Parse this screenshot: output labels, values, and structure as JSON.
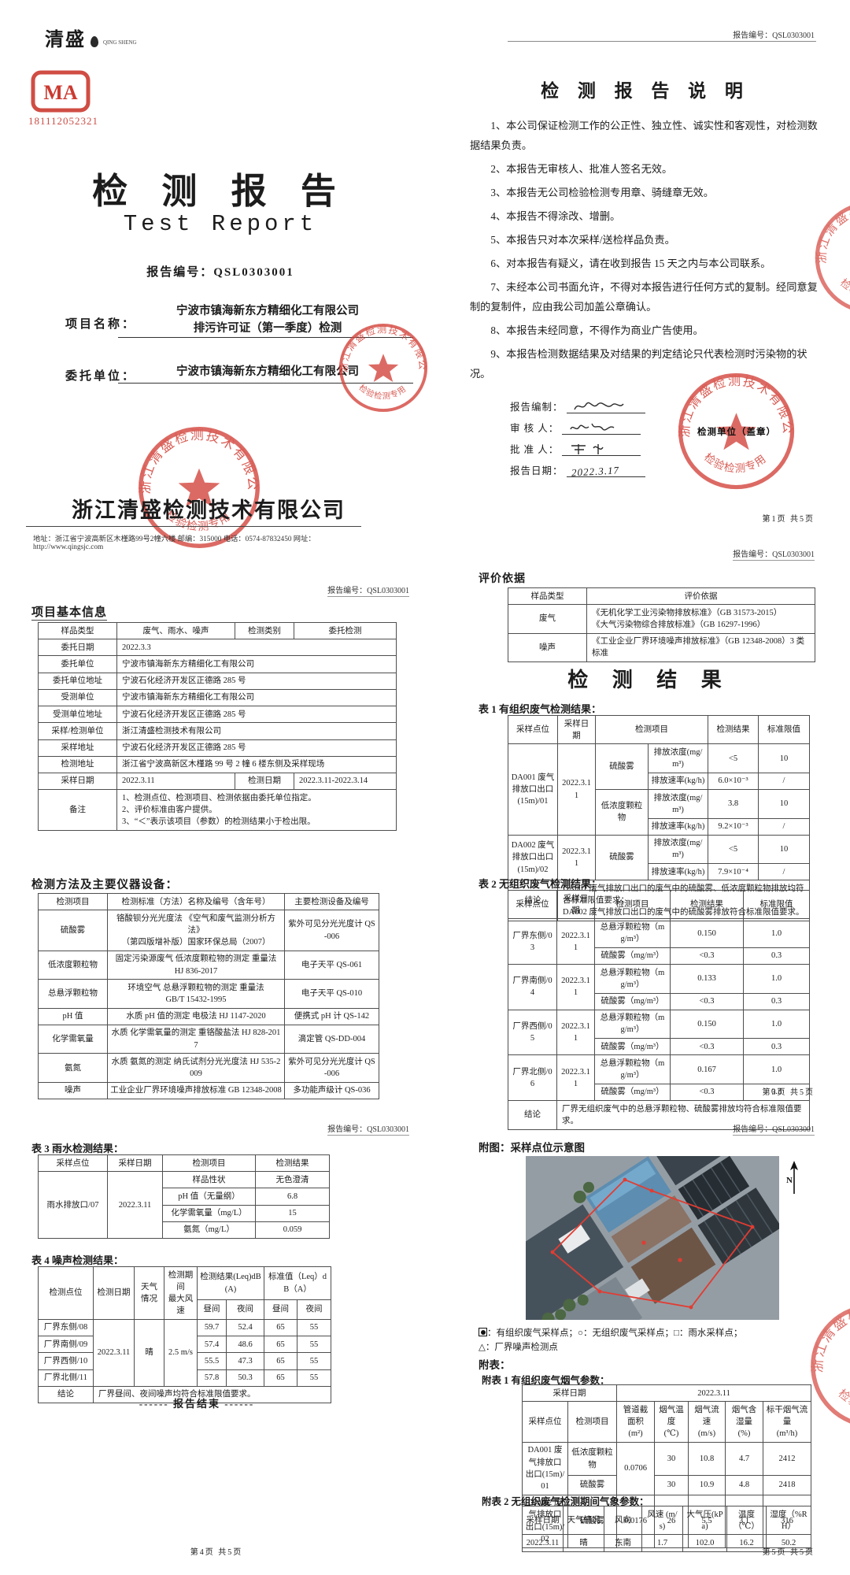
{
  "stamp": {
    "ring": "浙江清盛检测技术有限公司",
    "bottom": "检验检测专用章"
  },
  "cover": {
    "logo": "清盛",
    "logo_sub": "QING SHENG",
    "cma_text": "MA",
    "cma_code": "181112052321",
    "title_cn": "检 测 报 告",
    "title_en": "Test Report",
    "report_no": "报告编号：QSL0303001",
    "project_label": "项目名称：",
    "project_line1": "宁波市镇海新东方精细化工有限公司",
    "project_line2": "排污许可证（第一季度）检测",
    "client_label": "委托单位：",
    "client_value": "宁波市镇海新东方精细化工有限公司",
    "company": "浙江清盛检测技术有限公司",
    "address": "地址：浙江省宁波高新区木槿路99号2幢六楼 邮编：315000 电话：0574-87832450 网址：http://www.qingsjc.com"
  },
  "page2": {
    "header_no": "报告编号：QSL0303001",
    "title": "检 测 报 告 说 明",
    "items": [
      "1、本公司保证检测工作的公正性、独立性、诚实性和客观性，对检测数据结果负责。",
      "2、本报告无审核人、批准人签名无效。",
      "3、本报告无公司检验检测专用章、骑缝章无效。",
      "4、本报告不得涂改、增删。",
      "5、本报告只对本次采样/送检样品负责。",
      "6、对本报告有疑义，请在收到报告 15 天之内与本公司联系。",
      "7、未经本公司书面允许，不得对本报告进行任何方式的复制。经同意复制的复制件，应由我公司加盖公章确认。",
      "8、本报告未经同意，不得作为商业广告使用。",
      "9、本报告检测数据结果及对结果的判定结论只代表检测时污染物的状况。"
    ],
    "sign": {
      "prep_label": "报告编制：",
      "review_label": "审 核 人：",
      "approve_label": "批 准 人：",
      "date_label": "报告日期：",
      "date_value": "2022.3.17"
    },
    "stamp_caption": "检测单位（盖章）",
    "footer": "第1页 共5页"
  },
  "page3": {
    "header_no": "报告编号：QSL0303001",
    "title_basic": "项目基本信息",
    "basic": {
      "cols": [
        100,
        150,
        75,
        130
      ],
      "rows": [
        [
          {
            "t": "样品类型"
          },
          {
            "t": "废气、雨水、噪声"
          },
          {
            "t": "检测类别"
          },
          {
            "t": "委托检测"
          }
        ],
        [
          {
            "t": "委托日期"
          },
          {
            "t": "2022.3.3",
            "c": 3,
            "a": "l"
          }
        ],
        [
          {
            "t": "委托单位"
          },
          {
            "t": "宁波市镇海新东方精细化工有限公司",
            "c": 3,
            "a": "l"
          }
        ],
        [
          {
            "t": "委托单位地址"
          },
          {
            "t": "宁波石化经济开发区正德路 285 号",
            "c": 3,
            "a": "l"
          }
        ],
        [
          {
            "t": "受测单位"
          },
          {
            "t": "宁波市镇海新东方精细化工有限公司",
            "c": 3,
            "a": "l"
          }
        ],
        [
          {
            "t": "受测单位地址"
          },
          {
            "t": "宁波石化经济开发区正德路 285 号",
            "c": 3,
            "a": "l"
          }
        ],
        [
          {
            "t": "采样/检测单位"
          },
          {
            "t": "浙江清盛检测技术有限公司",
            "c": 3,
            "a": "l"
          }
        ],
        [
          {
            "t": "采样地址"
          },
          {
            "t": "宁波石化经济开发区正德路 285 号",
            "c": 3,
            "a": "l"
          }
        ],
        [
          {
            "t": "检测地址"
          },
          {
            "t": "浙江省宁波高新区木槿路 99 号 2 幢 6 楼东侧及采样现场",
            "c": 3,
            "a": "l"
          }
        ],
        [
          {
            "t": "采样日期"
          },
          {
            "t": "2022.3.11",
            "a": "l"
          },
          {
            "t": "检测日期"
          },
          {
            "t": "2022.3.11-2022.3.14",
            "a": "l"
          }
        ],
        [
          {
            "t": "备注"
          },
          {
            "t": "1、检测点位、检测项目、检测依据由委托单位指定。\n2、评价标准由客户提供。\n3、“＜”表示该项目（参数）的检测结果小于检出限。",
            "c": 3,
            "a": "l"
          }
        ]
      ]
    },
    "title_methods": "检测方法及主要仪器设备：",
    "methods": {
      "cols": [
        88,
        225,
        120
      ],
      "rows": [
        [
          {
            "t": "检测项目"
          },
          {
            "t": "检测标准（方法）名称及编号（含年号）"
          },
          {
            "t": "主要检测设备及编号"
          }
        ],
        [
          {
            "t": "硫酸雾"
          },
          {
            "t": "铬酸钡分光光度法 《空气和废气监测分析方法》\n（第四版增补版）国家环保总局（2007）"
          },
          {
            "t": "紫外可见分光光度计 QS-006"
          }
        ],
        [
          {
            "t": "低浓度颗粒物"
          },
          {
            "t": "固定污染源废气 低浓度颗粒物的测定 重量法\nHJ 836-2017"
          },
          {
            "t": "电子天平 QS-061"
          }
        ],
        [
          {
            "t": "总悬浮颗粒物"
          },
          {
            "t": "环境空气 总悬浮颗粒物的测定 重量法\nGB/T 15432-1995"
          },
          {
            "t": "电子天平 QS-010"
          }
        ],
        [
          {
            "t": "pH 值"
          },
          {
            "t": "水质 pH 值的测定 电极法 HJ 1147-2020"
          },
          {
            "t": "便携式 pH 计 QS-142"
          }
        ],
        [
          {
            "t": "化学需氧量"
          },
          {
            "t": "水质 化学需氧量的测定 重铬酸盐法 HJ 828-2017"
          },
          {
            "t": "滴定管 QS-DD-004"
          }
        ],
        [
          {
            "t": "氨氮"
          },
          {
            "t": "水质 氨氮的测定 纳氏试剂分光光度法 HJ 535-2009"
          },
          {
            "t": "紫外可见分光光度计 QS-006"
          }
        ],
        [
          {
            "t": "噪声"
          },
          {
            "t": "工业企业厂界环境噪声排放标准 GB 12348-2008"
          },
          {
            "t": "多功能声级计 QS-036"
          }
        ]
      ]
    }
  },
  "page4": {
    "header_no": "报告编号：QSL0303001",
    "eval_title": "评价依据",
    "eval": {
      "cols": [
        100,
        290
      ],
      "rows": [
        [
          {
            "t": "样品类型"
          },
          {
            "t": "评价依据"
          }
        ],
        [
          {
            "t": "废气"
          },
          {
            "t": "《无机化学工业污染物排放标准》（GB 31573-2015）\n《大气污染物综合排放标准》（GB 16297-1996）",
            "a": "l"
          }
        ],
        [
          {
            "t": "噪声"
          },
          {
            "t": "《工业企业厂界环境噪声排放标准》（GB 12348-2008）3 类标准",
            "a": "l"
          }
        ]
      ]
    },
    "result_title": "检 测 结 果",
    "t1_title": "表 1 有组织废气检测结果：",
    "t1": {
      "cols": [
        63,
        48,
        67,
        76,
        64,
        65
      ],
      "rows": [
        [
          {
            "t": "采样点位"
          },
          {
            "t": "采样日期"
          },
          {
            "t": "检测项目",
            "c": 2
          },
          {
            "t": "检测结果"
          },
          {
            "t": "标准限值"
          }
        ],
        [
          {
            "t": "DA001 废气排放口出口(15m)/01",
            "r": 4
          },
          {
            "t": "2022.3.11",
            "r": 4
          },
          {
            "t": "硫酸雾",
            "r": 2
          },
          {
            "t": "排放浓度(mg/m³)"
          },
          {
            "t": "<5"
          },
          {
            "t": "10"
          }
        ],
        [
          {
            "t": "排放速率(kg/h)"
          },
          {
            "t": "6.0×10⁻³"
          },
          {
            "t": "/"
          }
        ],
        [
          {
            "t": "低浓度颗粒物",
            "r": 2
          },
          {
            "t": "排放浓度(mg/m³)"
          },
          {
            "t": "3.8"
          },
          {
            "t": "10"
          }
        ],
        [
          {
            "t": "排放速率(kg/h)"
          },
          {
            "t": "9.2×10⁻³"
          },
          {
            "t": "/"
          }
        ],
        [
          {
            "t": "DA002 废气排放口出口(15m)/02",
            "r": 2
          },
          {
            "t": "2022.3.11",
            "r": 2
          },
          {
            "t": "硫酸雾",
            "r": 2
          },
          {
            "t": "排放浓度(mg/m³)"
          },
          {
            "t": "<5"
          },
          {
            "t": "10"
          }
        ],
        [
          {
            "t": "排放速率(kg/h)"
          },
          {
            "t": "7.9×10⁻⁴"
          },
          {
            "t": "/"
          }
        ],
        [
          {
            "t": "结论"
          },
          {
            "t": "DA001 废气排放口出口的废气中的硫酸雾、低浓度颗粒物排放均符合标准限值要求；\nDA002 废气排放口出口的废气中的硫酸雾排放符合标准限值要求。",
            "c": 5,
            "a": "l"
          }
        ]
      ]
    },
    "t2_title": "表 2 无组织废气检测结果：",
    "t2": {
      "cols": [
        62,
        48,
        96,
        93,
        84
      ],
      "rows": [
        [
          {
            "t": "采样点位"
          },
          {
            "t": "采样日期"
          },
          {
            "t": "检测项目"
          },
          {
            "t": "检测结果"
          },
          {
            "t": "标准限值"
          }
        ],
        [
          {
            "t": "厂界东侧/03",
            "r": 2
          },
          {
            "t": "2022.3.11",
            "r": 2
          },
          {
            "t": "总悬浮颗粒物（mg/m³）"
          },
          {
            "t": "0.150"
          },
          {
            "t": "1.0"
          }
        ],
        [
          {
            "t": "硫酸雾（mg/m³）"
          },
          {
            "t": "<0.3"
          },
          {
            "t": "0.3"
          }
        ],
        [
          {
            "t": "厂界南侧/04",
            "r": 2
          },
          {
            "t": "2022.3.11",
            "r": 2
          },
          {
            "t": "总悬浮颗粒物（mg/m³）"
          },
          {
            "t": "0.133"
          },
          {
            "t": "1.0"
          }
        ],
        [
          {
            "t": "硫酸雾（mg/m³）"
          },
          {
            "t": "<0.3"
          },
          {
            "t": "0.3"
          }
        ],
        [
          {
            "t": "厂界西侧/05",
            "r": 2
          },
          {
            "t": "2022.3.11",
            "r": 2
          },
          {
            "t": "总悬浮颗粒物（mg/m³）"
          },
          {
            "t": "0.150"
          },
          {
            "t": "1.0"
          }
        ],
        [
          {
            "t": "硫酸雾（mg/m³）"
          },
          {
            "t": "<0.3"
          },
          {
            "t": "0.3"
          }
        ],
        [
          {
            "t": "厂界北侧/06",
            "r": 2
          },
          {
            "t": "2022.3.11",
            "r": 2
          },
          {
            "t": "总悬浮颗粒物（mg/m³）"
          },
          {
            "t": "0.167"
          },
          {
            "t": "1.0"
          }
        ],
        [
          {
            "t": "硫酸雾（mg/m³）"
          },
          {
            "t": "<0.3"
          },
          {
            "t": "0.3"
          }
        ],
        [
          {
            "t": "结论"
          },
          {
            "t": "厂界无组织废气中的总悬浮颗粒物、硫酸雾排放均符合标准限值要求。",
            "c": 4,
            "a": "l"
          }
        ]
      ]
    },
    "footer": "第3页 共5页"
  },
  "page5": {
    "header_no": "报告编号：QSL0303001",
    "t3_title": "表 3 雨水检测结果：",
    "t3": {
      "cols": [
        88,
        70,
        118,
        94
      ],
      "rows": [
        [
          {
            "t": "采样点位"
          },
          {
            "t": "采样日期"
          },
          {
            "t": "检测项目"
          },
          {
            "t": "检测结果"
          }
        ],
        [
          {
            "t": "雨水排放口/07",
            "r": 4
          },
          {
            "t": "2022.3.11",
            "r": 4
          },
          {
            "t": "样品性状"
          },
          {
            "t": "无色澄清"
          }
        ],
        [
          {
            "t": "pH 值（无量纲）"
          },
          {
            "t": "6.8"
          }
        ],
        [
          {
            "t": "化学需氧量（mg/L）"
          },
          {
            "t": "15"
          }
        ],
        [
          {
            "t": "氨氮（mg/L）"
          },
          {
            "t": "0.059"
          }
        ]
      ]
    },
    "t4_title": "表 4 噪声检测结果：",
    "t4": {
      "cols": [
        70,
        52,
        38,
        42,
        37,
        48,
        42,
        43
      ],
      "rows": [
        [
          {
            "t": "检测点位",
            "r": 2
          },
          {
            "t": "检测日期",
            "r": 2
          },
          {
            "t": "天气情况",
            "r": 2
          },
          {
            "t": "检测期间\n最大风速",
            "r": 2
          },
          {
            "t": "检测结果(Leq)dB(A)",
            "c": 2
          },
          {
            "t": "标准值（Leq）dB（A）",
            "c": 2
          }
        ],
        [
          {
            "t": "昼间"
          },
          {
            "t": "夜间"
          },
          {
            "t": "昼间"
          },
          {
            "t": "夜间"
          }
        ],
        [
          {
            "t": "厂界东侧/08"
          },
          {
            "t": "2022.3.11",
            "r": 4
          },
          {
            "t": "晴",
            "r": 4
          },
          {
            "t": "2.5 m/s",
            "r": 4
          },
          {
            "t": "59.7"
          },
          {
            "t": "52.4"
          },
          {
            "t": "65"
          },
          {
            "t": "55"
          }
        ],
        [
          {
            "t": "厂界南侧/09"
          },
          {
            "t": "57.4"
          },
          {
            "t": "48.6"
          },
          {
            "t": "65"
          },
          {
            "t": "55"
          }
        ],
        [
          {
            "t": "厂界西侧/10"
          },
          {
            "t": "55.5"
          },
          {
            "t": "47.3"
          },
          {
            "t": "65"
          },
          {
            "t": "55"
          }
        ],
        [
          {
            "t": "厂界北侧/11"
          },
          {
            "t": "57.8"
          },
          {
            "t": "50.3"
          },
          {
            "t": "65"
          },
          {
            "t": "55"
          }
        ],
        [
          {
            "t": "结论"
          },
          {
            "t": "厂界昼间、夜间噪声均符合标准限值要求。",
            "c": 7,
            "a": "l"
          }
        ]
      ]
    },
    "end_mark": "------ 报告结束 ------",
    "footer": "第4页 共5页"
  },
  "page6": {
    "header_no": "报告编号：QSL0303001",
    "fig_title": "附图：采样点位示意图",
    "north": "N",
    "legend": {
      "m1": "：有组织废气采样点；",
      "m2": "○：无组织废气采样点；",
      "m3": "□：雨水采样点；",
      "line2": "△：厂界噪声检测点"
    },
    "appendix_label": "附表：",
    "a1_title": "附表 1 有组织废气烟气参数：",
    "a1": {
      "cols": [
        58,
        62,
        48,
        43,
        47,
        48,
        61
      ],
      "rows": [
        [
          {
            "t": "采样日期",
            "c": 2
          },
          {
            "t": "2022.3.11",
            "c": 5
          }
        ],
        [
          {
            "t": "采样点位"
          },
          {
            "t": "检测项目"
          },
          {
            "t": "管道截面积\n(m²)"
          },
          {
            "t": "烟气温度\n(℃)"
          },
          {
            "t": "烟气流速\n(m/s)"
          },
          {
            "t": "烟气含湿量\n(%)"
          },
          {
            "t": "标干烟气流量\n(m³/h)"
          }
        ],
        [
          {
            "t": "DA001 废气排放口出口(15m)/01",
            "r": 2
          },
          {
            "t": "低浓度颗粒物"
          },
          {
            "t": "0.0706",
            "r": 2
          },
          {
            "t": "30"
          },
          {
            "t": "10.8"
          },
          {
            "t": "4.7"
          },
          {
            "t": "2412"
          }
        ],
        [
          {
            "t": "硫酸雾"
          },
          {
            "t": "30"
          },
          {
            "t": "10.9"
          },
          {
            "t": "4.8"
          },
          {
            "t": "2418"
          }
        ],
        [
          {
            "t": "DA002 废气排放口出口(15m)/02"
          },
          {
            "t": "硫酸雾"
          },
          {
            "t": "0.0176"
          },
          {
            "t": "26"
          },
          {
            "t": "5.5"
          },
          {
            "t": "3.1"
          },
          {
            "t": "316"
          }
        ]
      ]
    },
    "a2_title": "附表 2 无组织废气检测期间气象参数：",
    "a2": {
      "cols": [
        52,
        52,
        48,
        52,
        56,
        50,
        57
      ],
      "rows": [
        [
          {
            "t": "采样日期"
          },
          {
            "t": "天气情况"
          },
          {
            "t": "风向"
          },
          {
            "t": "风速 (m/s)"
          },
          {
            "t": "大气压(kPa)"
          },
          {
            "t": "温度（℃）"
          },
          {
            "t": "湿度（%RH）"
          }
        ],
        [
          {
            "t": "2022.3.11"
          },
          {
            "t": "晴"
          },
          {
            "t": "东南"
          },
          {
            "t": "1.7"
          },
          {
            "t": "102.0"
          },
          {
            "t": "16.2"
          },
          {
            "t": "50.2"
          }
        ]
      ]
    },
    "footer": "第5页 共5页"
  }
}
